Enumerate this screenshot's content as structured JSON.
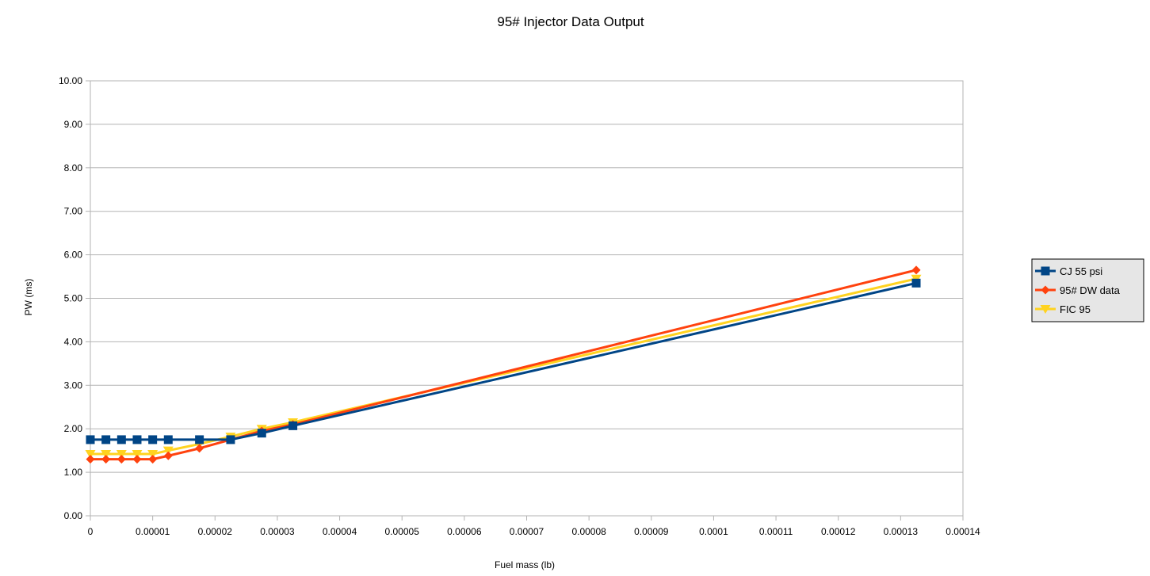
{
  "chart_data": {
    "type": "line",
    "title": "95# Injector Data Output",
    "xlabel": "Fuel mass (lb)",
    "ylabel": "PW (ms)",
    "xlim": [
      0,
      0.00014
    ],
    "ylim": [
      0,
      10
    ],
    "x_ticks": [
      "0",
      "0.00001",
      "0.00002",
      "0.00003",
      "0.00004",
      "0.00005",
      "0.00006",
      "0.00007",
      "0.00008",
      "0.00009",
      "0.0001",
      "0.00011",
      "0.00012",
      "0.00013",
      "0.00014"
    ],
    "y_ticks": [
      "0.00",
      "1.00",
      "2.00",
      "3.00",
      "4.00",
      "5.00",
      "6.00",
      "7.00",
      "8.00",
      "9.00",
      "10.00"
    ],
    "grid": true,
    "legend_position": "right",
    "series": [
      {
        "name": "CJ 55 psi",
        "color": "#004586",
        "marker": "square",
        "x": [
          0,
          2.5e-06,
          5e-06,
          7.5e-06,
          1e-05,
          1.25e-05,
          1.75e-05,
          2.25e-05,
          2.75e-05,
          3.25e-05,
          0.0001325
        ],
        "y": [
          1.75,
          1.75,
          1.75,
          1.75,
          1.75,
          1.75,
          1.75,
          1.75,
          1.9,
          2.07,
          5.35
        ]
      },
      {
        "name": "95# DW data",
        "color": "#ff420e",
        "marker": "diamond",
        "x": [
          0,
          2.5e-06,
          5e-06,
          7.5e-06,
          1e-05,
          1.25e-05,
          1.75e-05,
          2.25e-05,
          2.75e-05,
          3.25e-05,
          0.0001325
        ],
        "y": [
          1.3,
          1.3,
          1.3,
          1.3,
          1.3,
          1.38,
          1.55,
          1.75,
          1.95,
          2.1,
          5.65
        ]
      },
      {
        "name": "FIC 95",
        "color": "#ffd320",
        "marker": "triangle-down",
        "x": [
          0,
          2.5e-06,
          5e-06,
          7.5e-06,
          1e-05,
          1.25e-05,
          1.75e-05,
          2.25e-05,
          2.75e-05,
          3.25e-05,
          0.0001325
        ],
        "y": [
          1.42,
          1.42,
          1.42,
          1.42,
          1.42,
          1.5,
          1.65,
          1.82,
          2.0,
          2.15,
          5.45
        ]
      }
    ]
  }
}
